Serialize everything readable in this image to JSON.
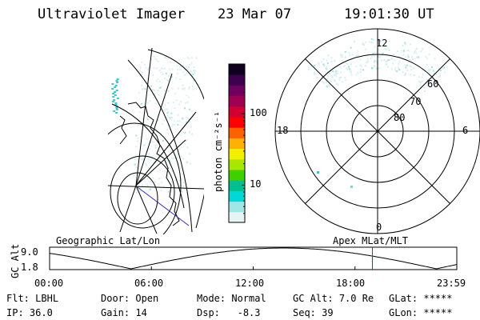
{
  "header": {
    "instrument": "Ultraviolet Imager",
    "date": "23 Mar 07",
    "time": "19:01:30 UT"
  },
  "colorbar": {
    "unit_label": "photon cm⁻²s⁻¹",
    "ticks": [
      {
        "value": 100,
        "label": "100"
      },
      {
        "value": 10,
        "label": "10"
      }
    ],
    "scale": "log",
    "range": [
      3,
      500
    ],
    "colors": [
      "#e6f4f4",
      "#9fe6e6",
      "#00d8d8",
      "#00c090",
      "#40d000",
      "#a8e800",
      "#f0f000",
      "#ffb000",
      "#ff6000",
      "#ff0000",
      "#d00030",
      "#a00050",
      "#700060",
      "#400050",
      "#100020"
    ]
  },
  "polar_plot": {
    "hour_labels": {
      "top": "12",
      "bottom": "0",
      "left": "18",
      "right": "6"
    },
    "lat_rings": [
      {
        "value": 80,
        "label": "80"
      },
      {
        "value": 70,
        "label": "70"
      },
      {
        "value": 60,
        "label": "60"
      }
    ],
    "outer_lat": 50
  },
  "timeline": {
    "left_label": "Geographic Lat/Lon",
    "right_label": "Apex MLat/MLT",
    "y_axis_label": "GC Alt",
    "y_ticks": [
      "9.0",
      "1.8"
    ],
    "y_range": [
      1.8,
      9.0
    ],
    "x_ticks": [
      "00:00",
      "06:00",
      "12:00",
      "18:00",
      "23:59"
    ],
    "x_range_hours": [
      0,
      24
    ],
    "current_time_hours": 19.025,
    "marker_color": "#ff0000",
    "orbit_period_hours": 18.0
  },
  "info": {
    "row1": [
      {
        "label": "Flt:",
        "value": "LBHL"
      },
      {
        "label": "Door:",
        "value": "Open"
      },
      {
        "label": "Mode:",
        "value": "Normal"
      },
      {
        "label": "GC Alt:",
        "value": "7.0 Re"
      },
      {
        "label": "GLat:",
        "value": "*****"
      }
    ],
    "row2": [
      {
        "label": "IP:",
        "value": "36.0"
      },
      {
        "label": "Gain:",
        "value": "14"
      },
      {
        "label": "Dsp:",
        "value": "-8.3"
      },
      {
        "label": "Seq:",
        "value": "39"
      },
      {
        "label": "GLon:",
        "value": "*****"
      }
    ]
  }
}
